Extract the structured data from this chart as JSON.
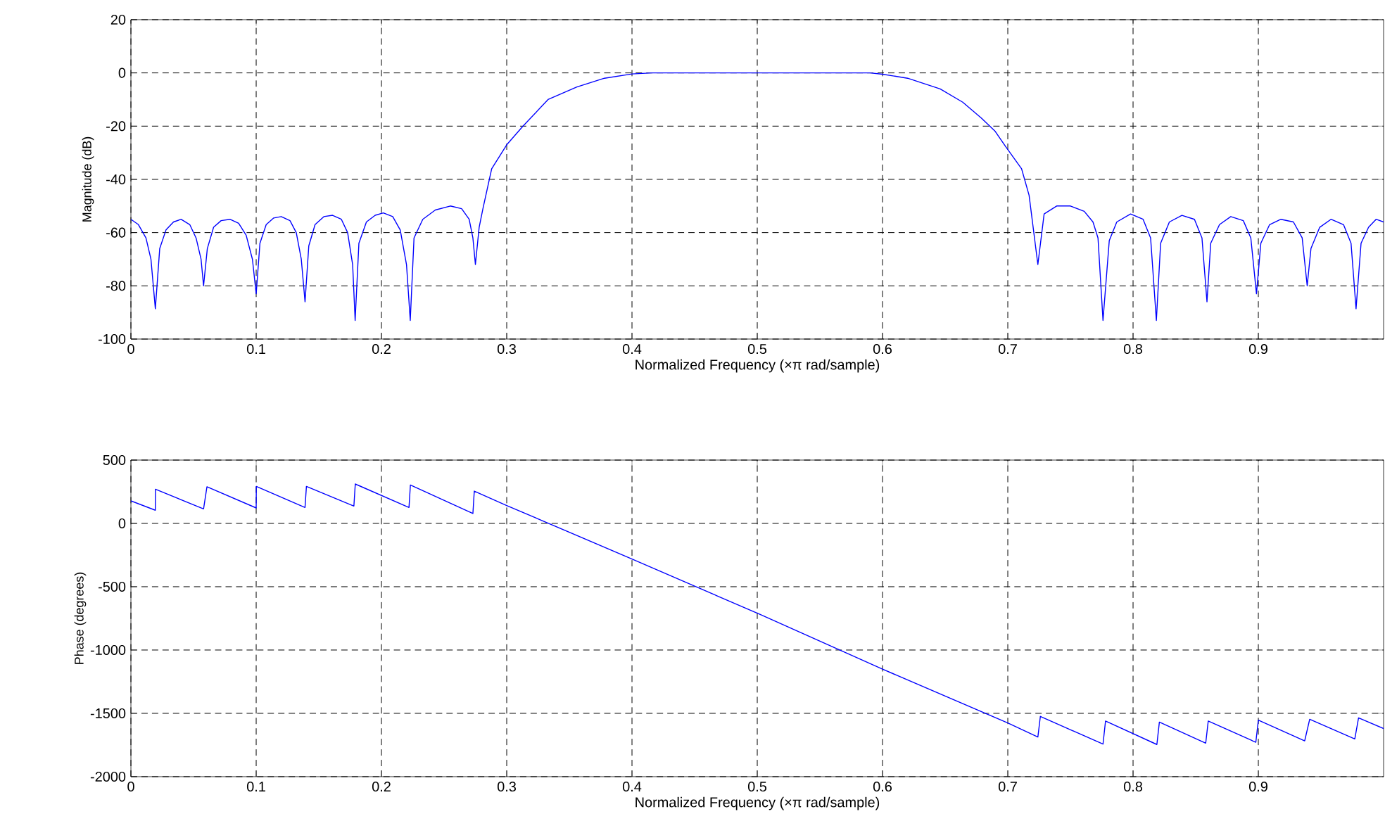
{
  "chart_data": [
    {
      "type": "line",
      "xlabel": "Normalized Frequency  (×π rad/sample)",
      "ylabel": "Magnitude (dB)",
      "color": "#0000ff",
      "grid": true,
      "xlim": [
        0,
        1
      ],
      "ylim": [
        -100,
        20
      ],
      "xticks": [
        0,
        0.1,
        0.2,
        0.3,
        0.4,
        0.5,
        0.6,
        0.7,
        0.8,
        0.9
      ],
      "yticks": [
        -100,
        -80,
        -60,
        -40,
        -20,
        0,
        20
      ],
      "x": [
        0,
        0.006,
        0.012,
        0.016,
        0.0195,
        0.023,
        0.028,
        0.034,
        0.04,
        0.047,
        0.052,
        0.056,
        0.058,
        0.061,
        0.066,
        0.072,
        0.079,
        0.086,
        0.092,
        0.097,
        0.1,
        0.103,
        0.108,
        0.114,
        0.12,
        0.127,
        0.132,
        0.136,
        0.139,
        0.142,
        0.147,
        0.154,
        0.161,
        0.168,
        0.173,
        0.177,
        0.179,
        0.182,
        0.188,
        0.195,
        0.2015,
        0.209,
        0.215,
        0.22,
        0.223,
        0.226,
        0.233,
        0.243,
        0.255,
        0.264,
        0.27,
        0.273,
        0.275,
        0.278,
        0.281,
        0.288,
        0.3,
        0.313,
        0.333,
        0.356,
        0.378,
        0.4,
        0.416,
        0.5,
        0.59,
        0.6,
        0.62,
        0.646,
        0.664,
        0.679,
        0.69,
        0.698,
        0.711,
        0.717,
        0.724,
        0.729,
        0.739,
        0.75,
        0.761,
        0.768,
        0.772,
        0.776,
        0.781,
        0.787,
        0.798,
        0.808,
        0.814,
        0.8186,
        0.822,
        0.829,
        0.839,
        0.849,
        0.855,
        0.859,
        0.862,
        0.869,
        0.878,
        0.888,
        0.894,
        0.8985,
        0.902,
        0.909,
        0.918,
        0.928,
        0.935,
        0.939,
        0.942,
        0.949,
        0.958,
        0.968,
        0.974,
        0.978,
        0.982,
        0.988,
        0.994,
        1.0
      ],
      "values": [
        -55,
        -57,
        -62,
        -70,
        -88.6,
        -66,
        -59,
        -56,
        -55,
        -57,
        -62,
        -70,
        -80,
        -66,
        -58,
        -55.5,
        -55,
        -56.5,
        -61,
        -70,
        -83,
        -64,
        -57,
        -54.5,
        -54,
        -55.5,
        -60,
        -70,
        -86,
        -65,
        -57,
        -54,
        -53.5,
        -55,
        -60,
        -72,
        -93,
        -64,
        -56,
        -53.5,
        -52.6,
        -54,
        -59,
        -72,
        -93,
        -62,
        -55,
        -51.5,
        -50,
        -51,
        -55,
        -62,
        -72,
        -58,
        -51,
        -36,
        -27,
        -20,
        -10,
        -5.3,
        -2,
        -0.4,
        0,
        0,
        0,
        -0.5,
        -2,
        -6,
        -11,
        -17,
        -22,
        -27.5,
        -36,
        -46,
        -72,
        -53,
        -50,
        -50,
        -52,
        -56,
        -62,
        -93,
        -63,
        -56,
        -53,
        -55,
        -62,
        -93,
        -64,
        -56,
        -53.5,
        -55,
        -62,
        -86,
        -64,
        -57,
        -54,
        -55.5,
        -62,
        -83,
        -64,
        -57,
        -55,
        -56,
        -62,
        -80,
        -66,
        -58,
        -55,
        -57,
        -64,
        -88.6,
        -64,
        -58,
        -55,
        -56
      ]
    },
    {
      "type": "line",
      "xlabel": "Normalized Frequency  (×π rad/sample)",
      "ylabel": "Phase (degrees)",
      "color": "#0000ff",
      "grid": true,
      "xlim": [
        0,
        1
      ],
      "ylim": [
        -2000,
        500
      ],
      "xticks": [
        0,
        0.1,
        0.2,
        0.3,
        0.4,
        0.5,
        0.6,
        0.7,
        0.8,
        0.9
      ],
      "yticks": [
        -2000,
        -1500,
        -1000,
        -500,
        0,
        500
      ],
      "x": [
        0,
        0.0195,
        0.0196,
        0.058,
        0.0607,
        0.1,
        0.1001,
        0.139,
        0.1401,
        0.178,
        0.1791,
        0.222,
        0.2231,
        0.273,
        0.2741,
        0.3,
        0.4,
        0.502,
        0.6,
        0.7,
        0.724,
        0.726,
        0.776,
        0.778,
        0.819,
        0.821,
        0.858,
        0.86,
        0.898,
        0.9,
        0.937,
        0.941,
        0.977,
        0.98,
        1.0
      ],
      "values": [
        178,
        104,
        270,
        115,
        289,
        122,
        292,
        126,
        292,
        137,
        311,
        126,
        303,
        78,
        255,
        141,
        -281,
        -718,
        -1151,
        -1576,
        -1687,
        -1524,
        -1743,
        -1561,
        -1746,
        -1569,
        -1735,
        -1561,
        -1728,
        -1554,
        -1717,
        -1547,
        -1702,
        -1536,
        -1620
      ]
    }
  ]
}
